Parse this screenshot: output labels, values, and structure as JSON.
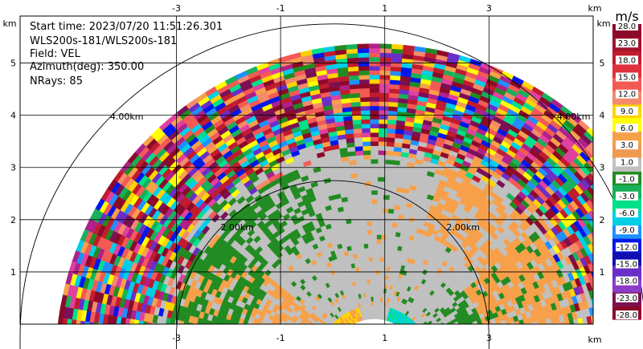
{
  "info": {
    "start_time": "Start time: 2023/07/20 11:51:26.301",
    "instrument": "WLS200s-181/WLS200s-181",
    "field": "Field: VEL",
    "azimuth": "Azimuth(deg): 350.00",
    "nrays": "NRays: 85"
  },
  "axes": {
    "x_unit": "km",
    "y_unit": "km",
    "x_ticks": [
      -3,
      -1,
      1,
      3
    ],
    "y_ticks": [
      1,
      2,
      3,
      4,
      5
    ],
    "xlim": [
      -6.0,
      5.0
    ],
    "ylim": [
      0.0,
      5.9
    ],
    "grid": true
  },
  "range_rings": [
    {
      "label": "2.00km",
      "radius_km": 2.0
    },
    {
      "label": "4.00km",
      "radius_km": 4.0
    }
  ],
  "colorbar": {
    "unit": "m/s",
    "labels": [
      "28.0",
      "23.0",
      "18.0",
      "15.0",
      "12.0",
      "9.0",
      "6.0",
      "3.0",
      "1.0",
      "-1.0",
      "-3.0",
      "-6.0",
      "-9.0",
      "-12.0",
      "-15.0",
      "-18.0",
      "-23.0",
      "-28.0"
    ],
    "colors": [
      "#8b0a2a",
      "#a0142d",
      "#c11b2e",
      "#e0303c",
      "#f35a55",
      "#f48a6a",
      "#ffd300",
      "#ffff00",
      "#f7a04a",
      "#ef9a50",
      "#c0c0c0",
      "#228b22",
      "#18b05a",
      "#00e08a",
      "#00cfe8",
      "#1e90ff",
      "#0018e8",
      "#1010b0",
      "#6a2ec8",
      "#8b3cc8",
      "#7a1055",
      "#8b0a2a"
    ]
  },
  "chart_data": {
    "type": "heatmap",
    "title": "",
    "field": "VEL",
    "units": "m/s",
    "projection": "RHI",
    "azimuth_deg": 350.0,
    "n_rays": 85,
    "elevation_range_deg": [
      2,
      178
    ],
    "max_range_km": 5.1,
    "xlabel": "km",
    "ylabel": "km",
    "clear_air_radius_km": 3.2,
    "dominant_near_range_value_ms": -1.0
  }
}
